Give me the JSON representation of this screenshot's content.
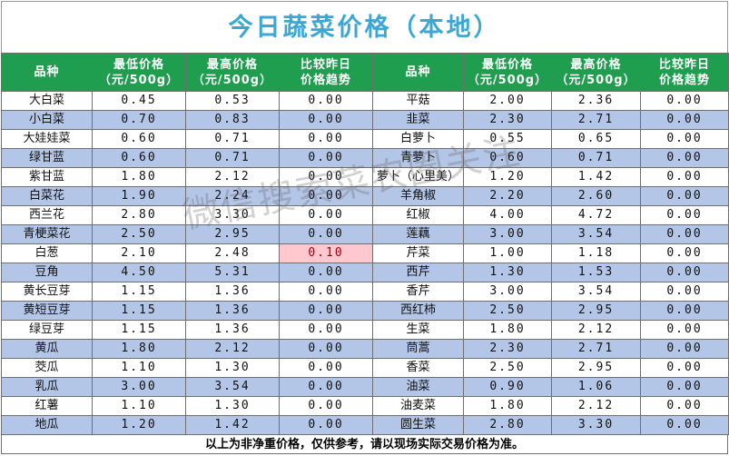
{
  "title": "今日蔬菜价格（本地）",
  "columns": {
    "name": "品种",
    "min_line1": "最低价格",
    "min_line2": "（元/500g）",
    "max_line1": "最高价格",
    "max_line2": "（元/500g）",
    "trend_line1": "比较昨日",
    "trend_line2": "价格趋势"
  },
  "left_rows": [
    {
      "name": "大白菜",
      "min": "0.45",
      "max": "0.53",
      "trend": "0.00"
    },
    {
      "name": "小白菜",
      "min": "0.70",
      "max": "0.83",
      "trend": "0.00"
    },
    {
      "name": "大娃娃菜",
      "min": "0.60",
      "max": "0.71",
      "trend": "0.00"
    },
    {
      "name": "绿甘蓝",
      "min": "0.60",
      "max": "0.71",
      "trend": "0.00"
    },
    {
      "name": "紫甘蓝",
      "min": "1.80",
      "max": "2.12",
      "trend": "0.00"
    },
    {
      "name": "白菜花",
      "min": "1.90",
      "max": "2.24",
      "trend": "0.00"
    },
    {
      "name": "西兰花",
      "min": "2.80",
      "max": "3.30",
      "trend": "0.00"
    },
    {
      "name": "青梗菜花",
      "min": "2.50",
      "max": "2.95",
      "trend": "0.00"
    },
    {
      "name": "白葱",
      "min": "2.10",
      "max": "2.48",
      "trend": "0.10"
    },
    {
      "name": "豆角",
      "min": "4.50",
      "max": "5.31",
      "trend": "0.00"
    },
    {
      "name": "黄长豆芽",
      "min": "1.15",
      "max": "1.36",
      "trend": "0.00"
    },
    {
      "name": "黄短豆芽",
      "min": "1.15",
      "max": "1.36",
      "trend": "0.00"
    },
    {
      "name": "绿豆芽",
      "min": "1.15",
      "max": "1.36",
      "trend": "0.00"
    },
    {
      "name": "黄瓜",
      "min": "1.80",
      "max": "2.12",
      "trend": "0.00"
    },
    {
      "name": "茭瓜",
      "min": "1.10",
      "max": "1.30",
      "trend": "0.00"
    },
    {
      "name": "乳瓜",
      "min": "3.00",
      "max": "3.54",
      "trend": "0.00"
    },
    {
      "name": "红薯",
      "min": "1.10",
      "max": "1.30",
      "trend": "0.00"
    },
    {
      "name": "地瓜",
      "min": "1.20",
      "max": "1.42",
      "trend": "0.00"
    }
  ],
  "right_rows": [
    {
      "name": "平菇",
      "min": "2.00",
      "max": "2.36",
      "trend": "0.00"
    },
    {
      "name": "韭菜",
      "min": "2.30",
      "max": "2.71",
      "trend": "0.00"
    },
    {
      "name": "白萝卜",
      "min": "0.55",
      "max": "0.65",
      "trend": "0.00"
    },
    {
      "name": "青萝卜",
      "min": "0.60",
      "max": "0.71",
      "trend": "0.00"
    },
    {
      "name": "萝卜（心里美）",
      "min": "1.20",
      "max": "1.42",
      "trend": "0.00"
    },
    {
      "name": "羊角椒",
      "min": "2.20",
      "max": "2.60",
      "trend": "0.00"
    },
    {
      "name": "红椒",
      "min": "4.00",
      "max": "4.72",
      "trend": "0.00"
    },
    {
      "name": "莲藕",
      "min": "3.00",
      "max": "3.54",
      "trend": "0.00"
    },
    {
      "name": "芹菜",
      "min": "1.00",
      "max": "1.18",
      "trend": "0.00"
    },
    {
      "name": "西芹",
      "min": "1.30",
      "max": "1.53",
      "trend": "0.00"
    },
    {
      "name": "香芹",
      "min": "3.00",
      "max": "3.54",
      "trend": "0.00"
    },
    {
      "name": "西红柿",
      "min": "2.50",
      "max": "2.95",
      "trend": "0.00"
    },
    {
      "name": "生菜",
      "min": "1.80",
      "max": "2.12",
      "trend": "0.00"
    },
    {
      "name": "茼蒿",
      "min": "2.30",
      "max": "2.71",
      "trend": "0.00"
    },
    {
      "name": "香菜",
      "min": "2.50",
      "max": "2.95",
      "trend": "0.00"
    },
    {
      "name": "油菜",
      "min": "0.90",
      "max": "1.06",
      "trend": "0.00"
    },
    {
      "name": "油麦菜",
      "min": "1.80",
      "max": "2.12",
      "trend": "0.00"
    },
    {
      "name": "圆生菜",
      "min": "2.80",
      "max": "3.30",
      "trend": "0.00"
    }
  ],
  "highlight": {
    "row": 8,
    "side": "left",
    "color": "#ffc7ce"
  },
  "colors": {
    "title": "#3aa7d6",
    "header_bg": "#1e9e4e",
    "band": "#b4c6e7"
  },
  "watermark": "微信搜索菜农圈关注",
  "footer": "以上为非净重价格，仅供参考，请以现场实际交易价格为准。"
}
